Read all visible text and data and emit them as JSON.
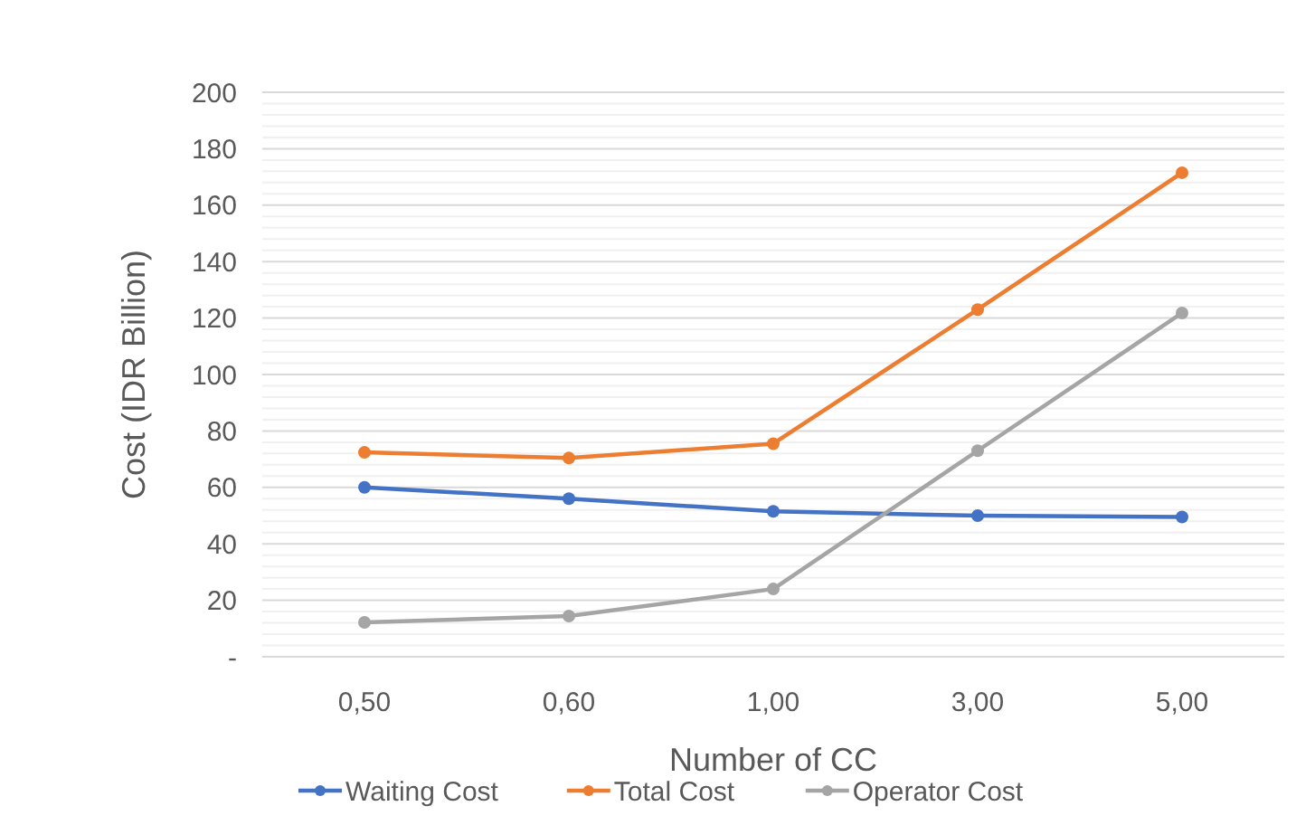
{
  "chart_data": {
    "type": "line",
    "xlabel": "Number of CC",
    "ylabel": "Cost (IDR Billion)",
    "categories": [
      "0,50",
      "0,60",
      "1,00",
      "3,00",
      "5,00"
    ],
    "series": [
      {
        "name": "Waiting Cost",
        "color": "#4472c4",
        "values": [
          60,
          56,
          51.5,
          50,
          49.5
        ]
      },
      {
        "name": "Total Cost",
        "color": "#ed7d31",
        "values": [
          72.4,
          70.4,
          75.5,
          123,
          171.5
        ]
      },
      {
        "name": "Operator Cost",
        "color": "#a5a5a5",
        "values": [
          12.2,
          14.4,
          24,
          73,
          121.8
        ]
      }
    ],
    "ylim": [
      0,
      200
    ],
    "yticks": [
      {
        "value": 0,
        "label": "-"
      },
      {
        "value": 4,
        "label": null
      },
      {
        "value": 8,
        "label": null
      },
      {
        "value": 12,
        "label": null
      },
      {
        "value": 16,
        "label": null
      },
      20,
      {
        "value": 24,
        "label": null
      },
      {
        "value": 28,
        "label": null
      },
      {
        "value": 32,
        "label": null
      },
      {
        "value": 36,
        "label": null
      },
      40,
      {
        "value": 44,
        "label": null
      },
      {
        "value": 48,
        "label": null
      },
      {
        "value": 52,
        "label": null
      },
      {
        "value": 56,
        "label": null
      },
      60,
      {
        "value": 64,
        "label": null
      },
      {
        "value": 68,
        "label": null
      },
      {
        "value": 72,
        "label": null
      },
      {
        "value": 76,
        "label": null
      },
      80,
      {
        "value": 84,
        "label": null
      },
      {
        "value": 88,
        "label": null
      },
      {
        "value": 92,
        "label": null
      },
      {
        "value": 96,
        "label": null
      },
      100,
      {
        "value": 104,
        "label": null
      },
      {
        "value": 108,
        "label": null
      },
      {
        "value": 112,
        "label": null
      },
      {
        "value": 116,
        "label": null
      },
      120,
      {
        "value": 124,
        "label": null
      },
      {
        "value": 128,
        "label": null
      },
      {
        "value": 132,
        "label": null
      },
      {
        "value": 136,
        "label": null
      },
      140,
      {
        "value": 144,
        "label": null
      },
      {
        "value": 148,
        "label": null
      },
      {
        "value": 152,
        "label": null
      },
      {
        "value": 156,
        "label": null
      },
      160,
      {
        "value": 164,
        "label": null
      },
      {
        "value": 168,
        "label": null
      },
      {
        "value": 172,
        "label": null
      },
      {
        "value": 176,
        "label": null
      },
      180,
      {
        "value": 184,
        "label": null
      },
      {
        "value": 188,
        "label": null
      },
      {
        "value": 192,
        "label": null
      },
      {
        "value": 196,
        "label": null
      },
      200
    ],
    "grid": "y",
    "legend": "bottom",
    "marker": "circle",
    "line_style": "solid"
  }
}
